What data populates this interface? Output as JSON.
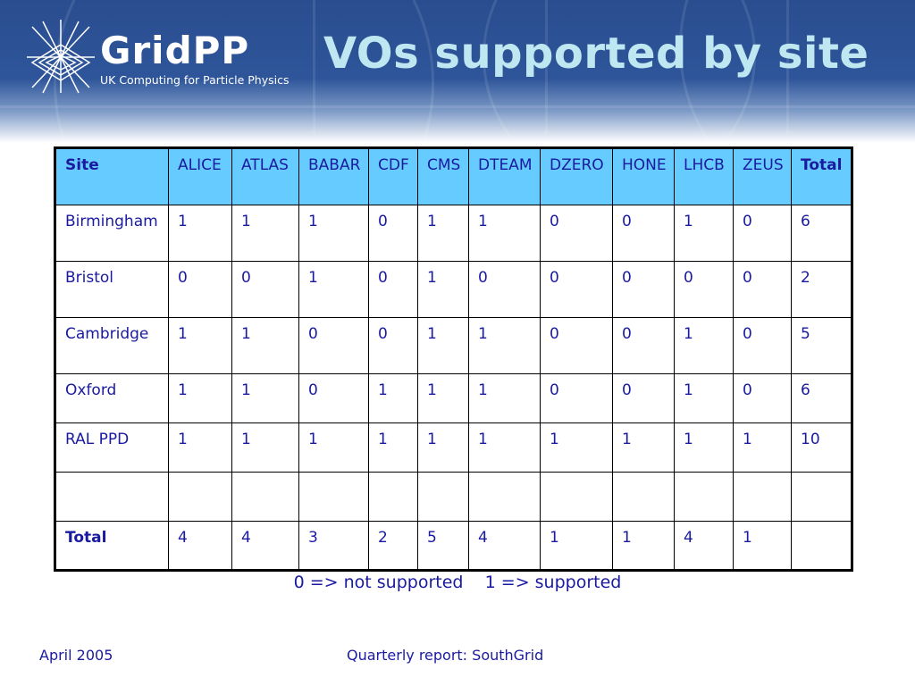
{
  "header": {
    "logo_title": "GridPP",
    "logo_subtitle": "UK Computing for Particle Physics",
    "page_title": "VOs supported by site"
  },
  "table": {
    "columns": [
      "Site",
      "ALICE",
      "ATLAS",
      "BABAR",
      "CDF",
      "CMS",
      "DTEAM",
      "DZERO",
      "HONE",
      "LHCB",
      "ZEUS",
      "Total"
    ],
    "rows": [
      [
        "Birmingham",
        "1",
        "1",
        "1",
        "0",
        "1",
        "1",
        "0",
        "0",
        "1",
        "0",
        "6"
      ],
      [
        "Bristol",
        "0",
        "0",
        "1",
        "0",
        "1",
        "0",
        "0",
        "0",
        "0",
        "0",
        "2"
      ],
      [
        "Cambridge",
        "1",
        "1",
        "0",
        "0",
        "1",
        "1",
        "0",
        "0",
        "1",
        "0",
        "5"
      ],
      [
        "Oxford",
        "1",
        "1",
        "0",
        "1",
        "1",
        "1",
        "0",
        "0",
        "1",
        "0",
        "6"
      ],
      [
        "RAL PPD",
        "1",
        "1",
        "1",
        "1",
        "1",
        "1",
        "1",
        "1",
        "1",
        "1",
        "10"
      ],
      [
        "",
        "",
        "",
        "",
        "",
        "",
        "",
        "",
        "",
        "",
        "",
        ""
      ],
      [
        "Total",
        "4",
        "4",
        "3",
        "2",
        "5",
        "4",
        "1",
        "1",
        "4",
        "1",
        ""
      ]
    ]
  },
  "legend": "0 => not supported    1 => supported",
  "footer": {
    "date": "April 2005",
    "report": "Quarterly report: SouthGrid"
  },
  "colors": {
    "banner": "#2e559a",
    "title": "#bfe7f2",
    "header_row": "#66ccff",
    "text": "#1a1aa0"
  }
}
